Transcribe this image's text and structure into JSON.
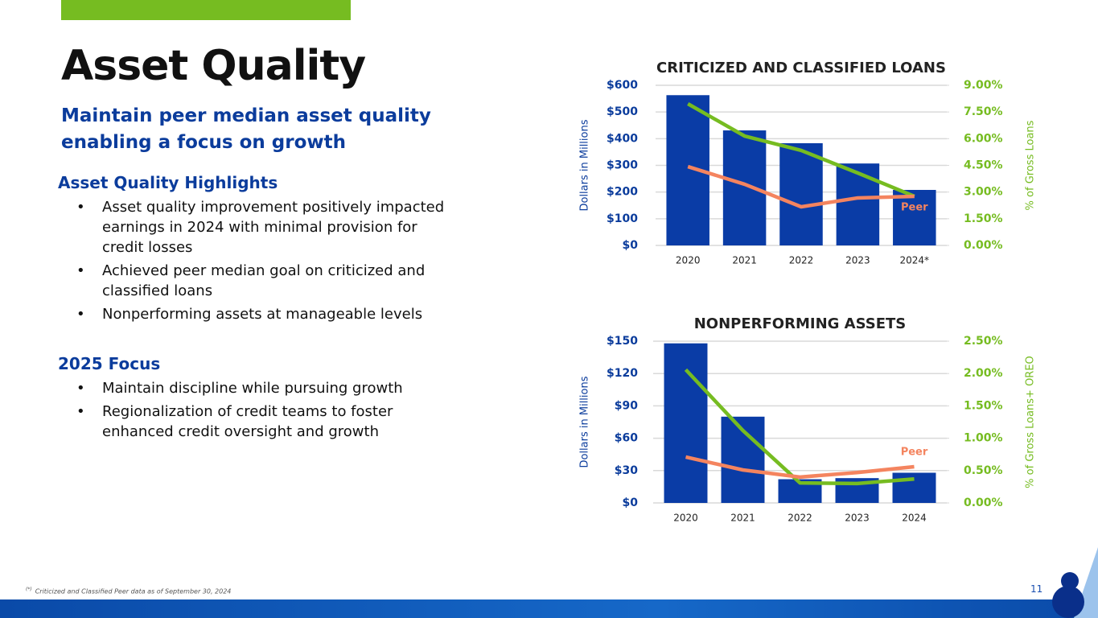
{
  "slide": {
    "title": "Asset Quality",
    "subtitle": "Maintain peer median asset quality enabling a focus on growth",
    "sections": [
      {
        "heading": "Asset Quality Highlights",
        "bullets": [
          "Asset quality improvement positively impacted earnings in 2024 with minimal provision for credit losses",
          "Achieved peer median goal on criticized and classified loans",
          "Nonperforming assets at manageable levels"
        ]
      },
      {
        "heading": "2025 Focus",
        "bullets": [
          "Maintain discipline while pursuing growth",
          "Regionalization of credit teams to foster enhanced credit oversight and growth"
        ]
      }
    ],
    "footnote": {
      "marker": "(*)",
      "text": "Criticized and Classified Peer data as of September 30, 2024"
    },
    "page_number": "11"
  },
  "chart_data": [
    {
      "type": "bar",
      "title": "CRITICIZED AND CLASSIFIED LOANS",
      "y_label": "Dollars in Millions",
      "y2_label": "% of Gross Loans",
      "categories": [
        "2020",
        "2021",
        "2022",
        "2023",
        "2024*"
      ],
      "series": [
        {
          "color": "#0a3ca6",
          "values": [
            563,
            431,
            383,
            307,
            208
          ]
        },
        {
          "type": "line",
          "axis": "y2",
          "color": "#76bc21",
          "values": [
            7.96,
            6.15,
            5.34,
            4.07,
            2.76
          ]
        },
        {
          "name": "Peer",
          "type": "line",
          "axis": "y2",
          "color": "#f4845f",
          "values": [
            4.43,
            3.44,
            2.17,
            2.67,
            2.76
          ]
        }
      ],
      "ylim": [
        0,
        600
      ],
      "yticks": [
        {
          "value": 0,
          "label": "$0"
        },
        {
          "value": 100,
          "label": "$100"
        },
        {
          "value": 200,
          "label": "$200"
        },
        {
          "value": 300,
          "label": "$300"
        },
        {
          "value": 400,
          "label": "$400"
        },
        {
          "value": 500,
          "label": "$500"
        },
        {
          "value": 600,
          "label": "$600"
        }
      ],
      "y2lim": [
        0,
        9
      ],
      "y2ticks": [
        {
          "value": 0,
          "label": "0.00%"
        },
        {
          "value": 1.5,
          "label": "1.50%"
        },
        {
          "value": 3,
          "label": "3.00%"
        },
        {
          "value": 4.5,
          "label": "4.50%"
        },
        {
          "value": 6,
          "label": "6.00%"
        },
        {
          "value": 7.5,
          "label": "7.50%"
        },
        {
          "value": 9,
          "label": "9.00%"
        }
      ],
      "grid": true
    },
    {
      "type": "bar",
      "title": "NONPERFORMING ASSETS",
      "y_label": "Dollars in Millions",
      "y2_label": "% of Gross Loans+ OREO",
      "categories": [
        "2020",
        "2021",
        "2022",
        "2023",
        "2024"
      ],
      "series": [
        {
          "color": "#0a3ca6",
          "values": [
            148,
            80,
            22,
            23,
            28
          ]
        },
        {
          "type": "line",
          "axis": "y2",
          "color": "#76bc21",
          "values": [
            2.06,
            1.12,
            0.31,
            0.3,
            0.37
          ]
        },
        {
          "name": "Peer",
          "type": "line",
          "axis": "y2",
          "color": "#f4845f",
          "values": [
            0.71,
            0.51,
            0.4,
            0.47,
            0.56
          ]
        }
      ],
      "ylim": [
        0,
        150
      ],
      "yticks": [
        {
          "value": 0,
          "label": "$0"
        },
        {
          "value": 30,
          "label": "$30"
        },
        {
          "value": 60,
          "label": "$60"
        },
        {
          "value": 90,
          "label": "$90"
        },
        {
          "value": 120,
          "label": "$120"
        },
        {
          "value": 150,
          "label": "$150"
        }
      ],
      "y2lim": [
        0,
        2.5
      ],
      "y2ticks": [
        {
          "value": 0,
          "label": "0.00%"
        },
        {
          "value": 0.5,
          "label": "0.50%"
        },
        {
          "value": 1,
          "label": "1.00%"
        },
        {
          "value": 1.5,
          "label": "1.50%"
        },
        {
          "value": 2,
          "label": "2.00%"
        },
        {
          "value": 2.5,
          "label": "2.50%"
        }
      ],
      "grid": true
    }
  ]
}
